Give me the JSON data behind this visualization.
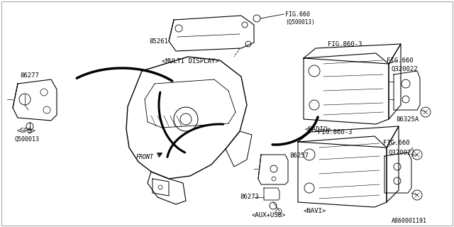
{
  "bg_color": "#ffffff",
  "line_color": "#000000",
  "text_color": "#000000",
  "fig_width": 6.4,
  "fig_height": 3.2,
  "dpi": 100,
  "part_number_bottom_right": "A860001191",
  "labels": {
    "multi_display": "<MULTI DISPLAY>",
    "gps": "<GPS>",
    "radio": "<RADIO>",
    "navi": "<NAVI>",
    "aux_usb": "<AUX+USB>",
    "front": "FRONT"
  },
  "part_numbers": {
    "n85261": "85261",
    "n86277": "86277",
    "n86257": "86257",
    "n86273": "86273",
    "n86325A": "86325A",
    "nQ500013_gps": "Q500013",
    "nQ320022_radio": "Q320022",
    "nQ320022_navi": "Q320022",
    "nFIG660_top": "FIG.660",
    "nFIG660_topref": "(Q500013)",
    "nFIG860_3_radio": "FIG.860-3",
    "nFIG660_radio": "FIG.660",
    "nFIG860_3_navi": "FIG.860-3",
    "nFIG660_navi": "FIG.660"
  }
}
